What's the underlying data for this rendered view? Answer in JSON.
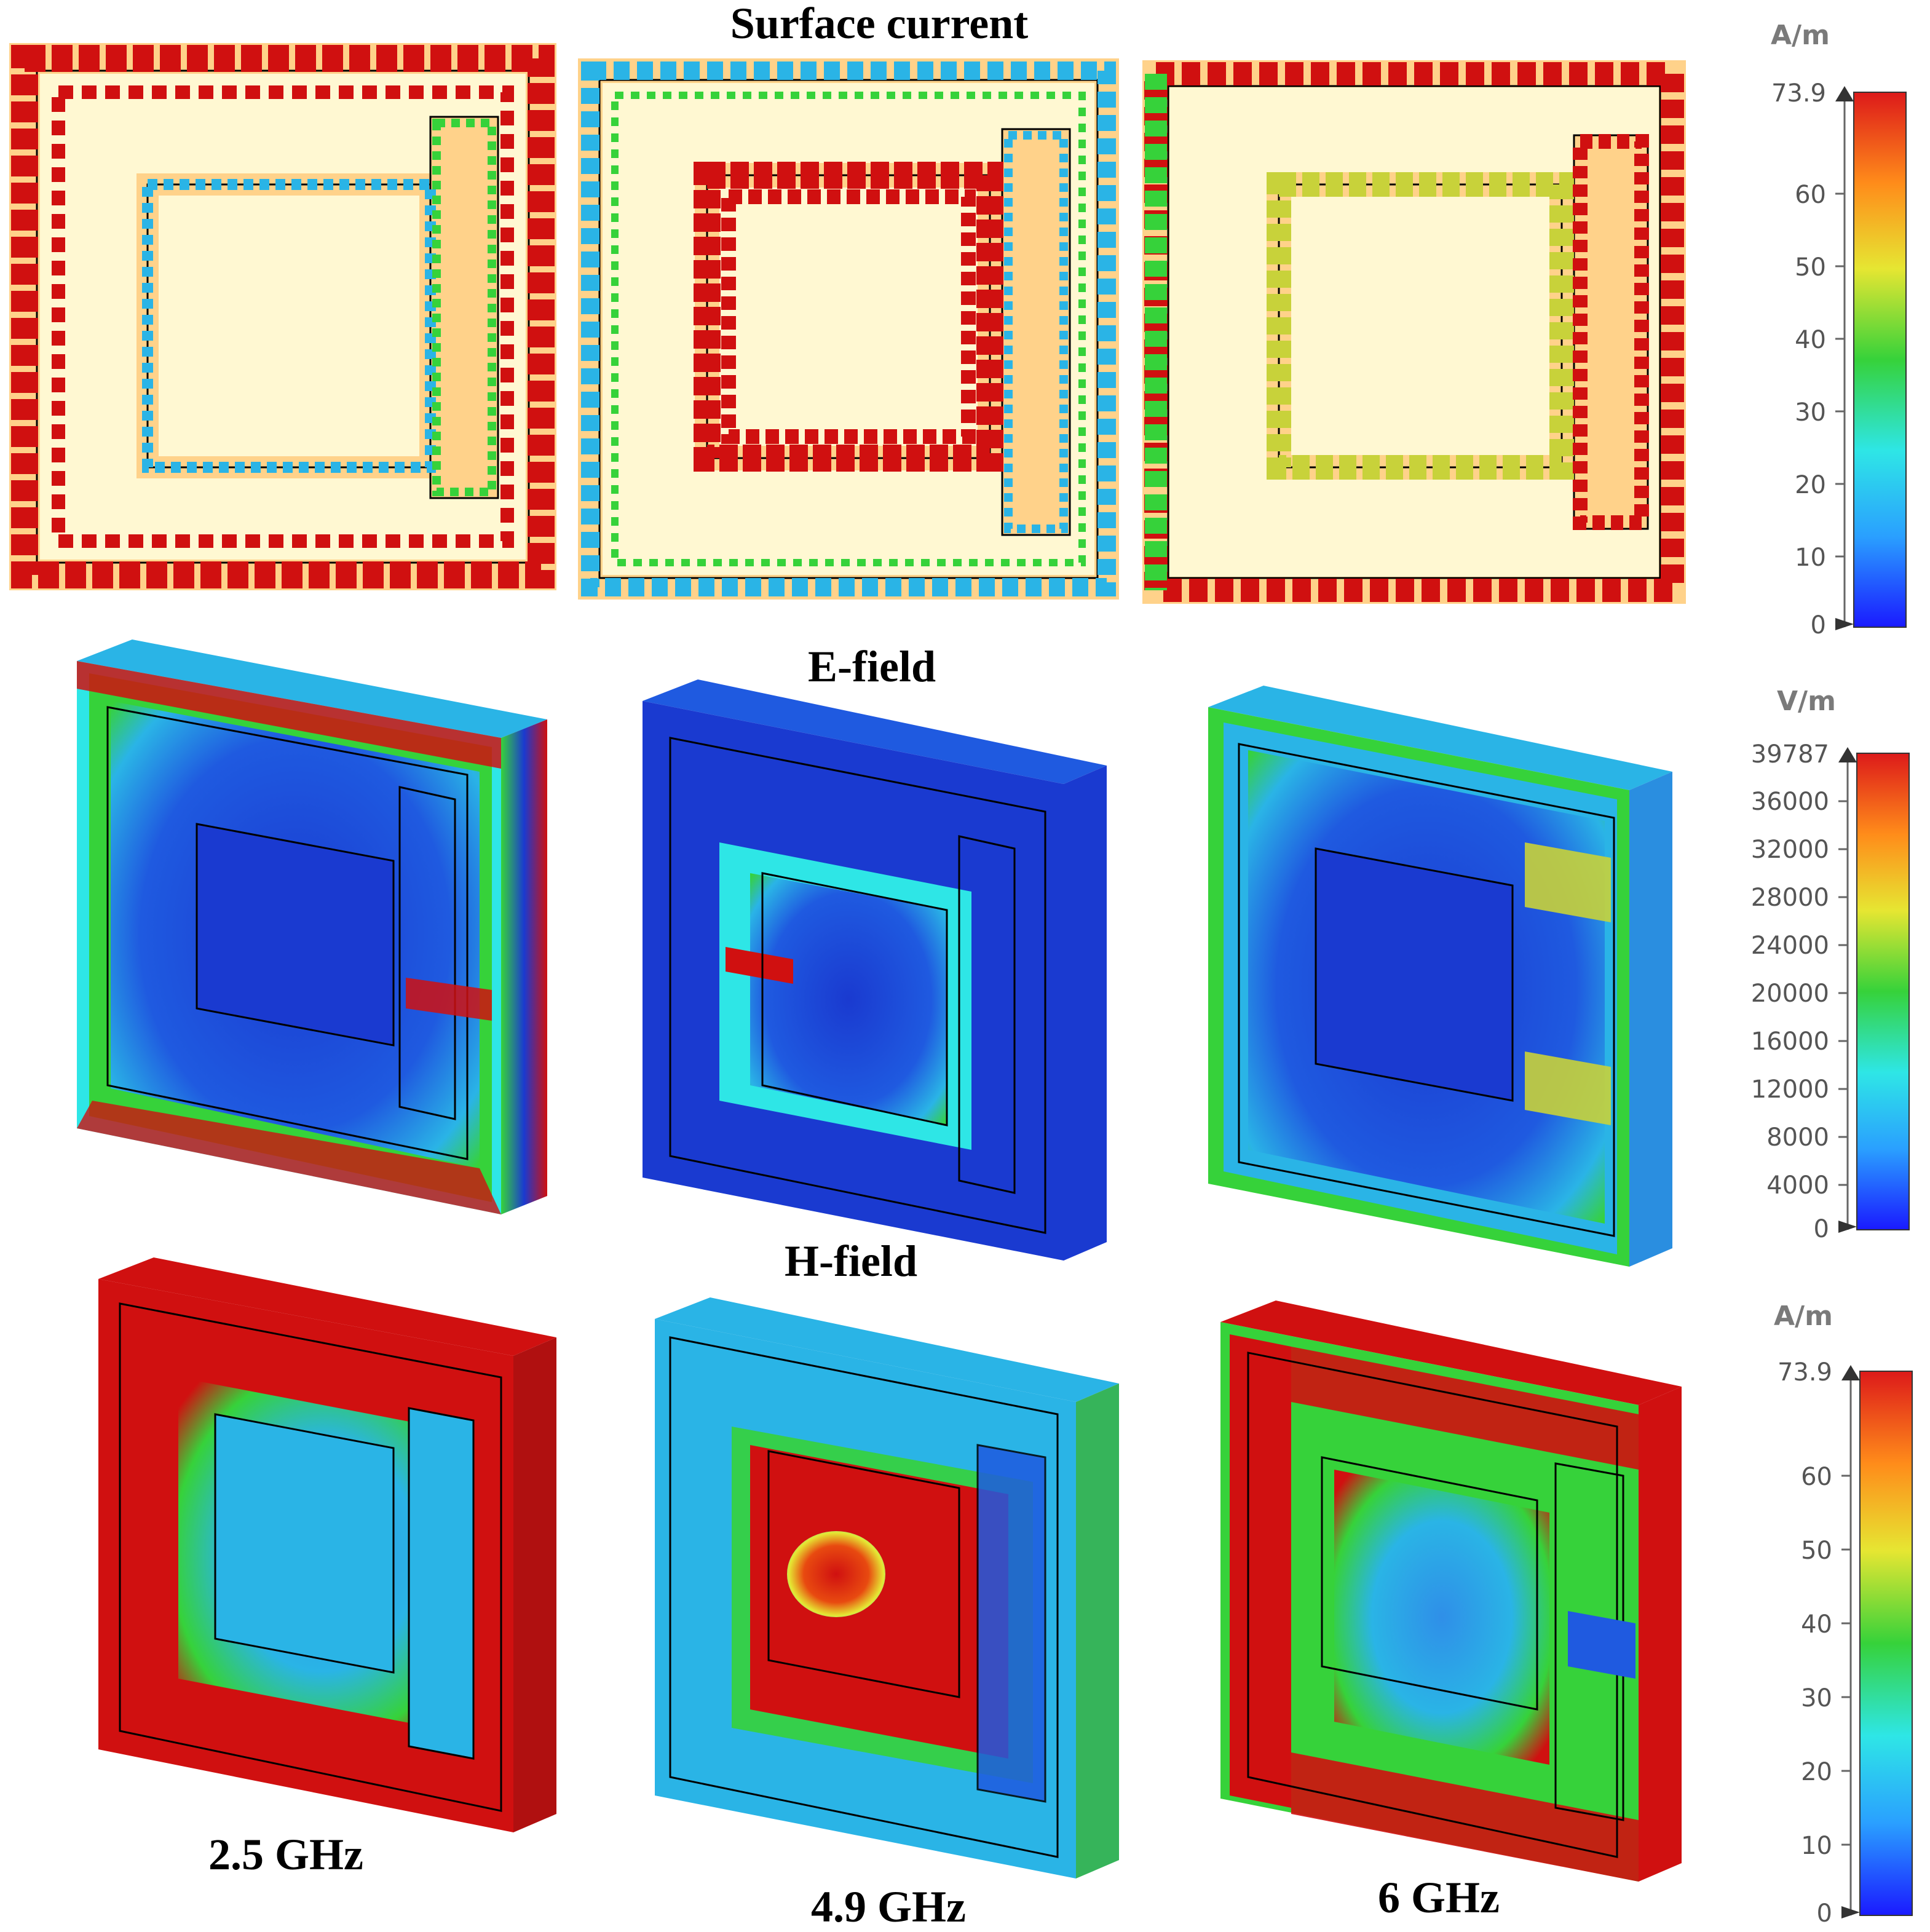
{
  "titles": {
    "surface_current": "Surface current",
    "e_field": "E-field",
    "h_field": "H-field"
  },
  "frequencies": [
    "2.5 GHz",
    "4.9 GHz",
    "6 GHz"
  ],
  "colorbars": [
    {
      "unit": "A/m",
      "max": "73.9",
      "ticks": [
        "60",
        "50",
        "40",
        "30",
        "20",
        "10"
      ],
      "min": "0"
    },
    {
      "unit": "V/m",
      "max": "39787",
      "ticks": [
        "36000",
        "32000",
        "28000",
        "24000",
        "20000",
        "16000",
        "12000",
        "8000",
        "4000"
      ],
      "min": "0"
    },
    {
      "unit": "A/m",
      "max": "73.9",
      "ticks": [
        "60",
        "50",
        "40",
        "30",
        "20",
        "10"
      ],
      "min": "0"
    }
  ],
  "colormap": [
    "#1a1aff",
    "#2aa0ff",
    "#2ee6e6",
    "#36d23a",
    "#e6e632",
    "#ff8c1a",
    "#dd1a1a"
  ],
  "palette": {
    "substrate": "#fff8d2",
    "copper": "#ffd28a",
    "hot": "#d01010",
    "cold": "#1a3ad0"
  }
}
